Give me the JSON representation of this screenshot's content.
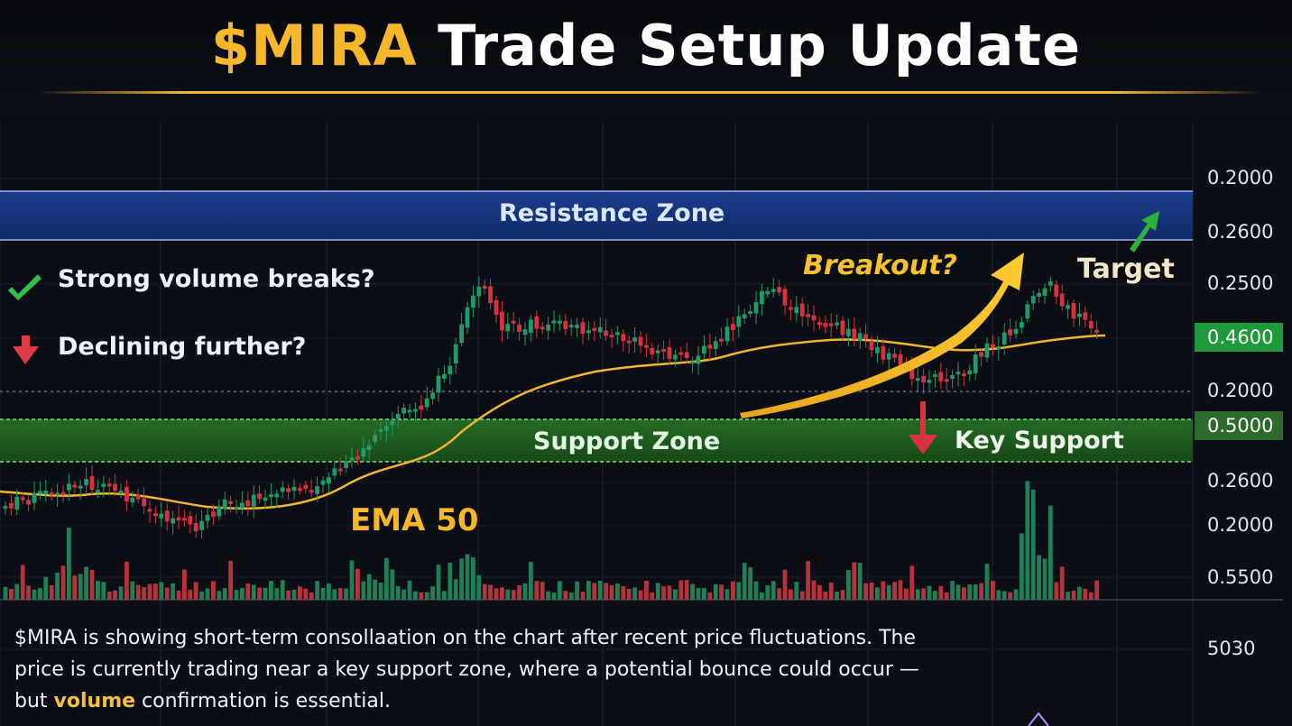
{
  "title": {
    "ticker": "$MIRA",
    "rest": "Trade Setup Update"
  },
  "zones": {
    "resistance": "Resistance Zone",
    "support": "Support Zone",
    "key_support": "Key Support"
  },
  "annotations": {
    "check_text": "Strong volume breaks?",
    "down_text": "Declining further?",
    "breakout": "Breakout?",
    "target": "Target",
    "ema_label": "EMA 50"
  },
  "description": {
    "line1": "$MIRA is showing short-term consollaation on the chart after recent price fluctuations. The",
    "line2": "price is currently trading near a key support zone, where a potential bounce could occur —",
    "line3_pre": "but ",
    "line3_hl": "volume",
    "line3_post": " confirmation is essential."
  },
  "colors": {
    "up": "#1f9a6a",
    "down": "#d9313d",
    "ema": "#f2b531",
    "resistance": "#16367f",
    "support": "#1e5a1e",
    "accent": "#f7b72a"
  },
  "chart_data": {
    "type": "candlestick",
    "y_axis_labels": [
      "0.2000",
      "0.2600",
      "0.2500",
      "0.4600",
      "0.2000",
      "0.5000",
      "0.2600",
      "0.2000",
      "0.5500",
      "5030"
    ],
    "highlighted_labels": [
      "0.4600",
      "0.5000"
    ],
    "series": [
      {
        "name": "EMA 50",
        "kind": "line"
      },
      {
        "kind": "candles"
      },
      {
        "kind": "volume"
      }
    ],
    "grid": true
  }
}
